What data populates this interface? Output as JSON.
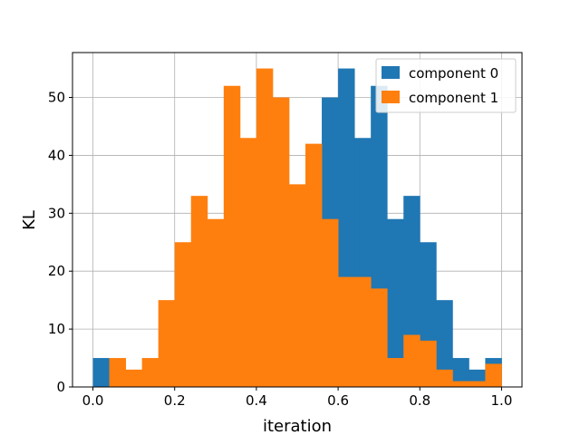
{
  "chart_data": {
    "type": "bar",
    "subtype": "overlaid-histogram",
    "xlabel": "iteration",
    "ylabel": "KL",
    "xlim": [
      -0.05,
      1.05
    ],
    "ylim": [
      0,
      57.75
    ],
    "xticks": [
      "0.0",
      "0.2",
      "0.4",
      "0.6",
      "0.8",
      "1.0"
    ],
    "xtick_values": [
      0.0,
      0.2,
      0.4,
      0.6,
      0.8,
      1.0
    ],
    "yticks": [
      "0",
      "10",
      "20",
      "30",
      "40",
      "50"
    ],
    "ytick_values": [
      0,
      10,
      20,
      30,
      40,
      50
    ],
    "grid": true,
    "legend_position": "top-right",
    "series": [
      {
        "name": "component 0",
        "color": "#1f77b4",
        "bin_edges": [
          0.0,
          0.04,
          0.08,
          0.12,
          0.16,
          0.2,
          0.24,
          0.28,
          0.32,
          0.36,
          0.4,
          0.44,
          0.48,
          0.52,
          0.56,
          0.6,
          0.64,
          0.68,
          0.72,
          0.76,
          0.8,
          0.84,
          0.88,
          0.92,
          0.96,
          1.0
        ],
        "values": [
          5,
          0,
          0,
          0,
          0,
          0,
          0,
          0,
          0,
          0,
          0,
          0,
          0,
          0,
          50,
          55,
          43,
          52,
          29,
          33,
          25,
          15,
          5,
          3,
          5
        ]
      },
      {
        "name": "component 1",
        "color": "#ff7f0e",
        "bin_edges": [
          0.04,
          0.08,
          0.12,
          0.16,
          0.2,
          0.24,
          0.28,
          0.32,
          0.36,
          0.4,
          0.44,
          0.48,
          0.52,
          0.56,
          0.6,
          0.64,
          0.68,
          0.72,
          0.76,
          0.8,
          0.84,
          0.88,
          0.92,
          0.96,
          1.0
        ],
        "values": [
          5,
          3,
          5,
          15,
          25,
          33,
          29,
          52,
          43,
          55,
          50,
          35,
          42,
          29,
          19,
          19,
          17,
          5,
          9,
          8,
          3,
          1,
          1,
          4
        ]
      }
    ]
  }
}
